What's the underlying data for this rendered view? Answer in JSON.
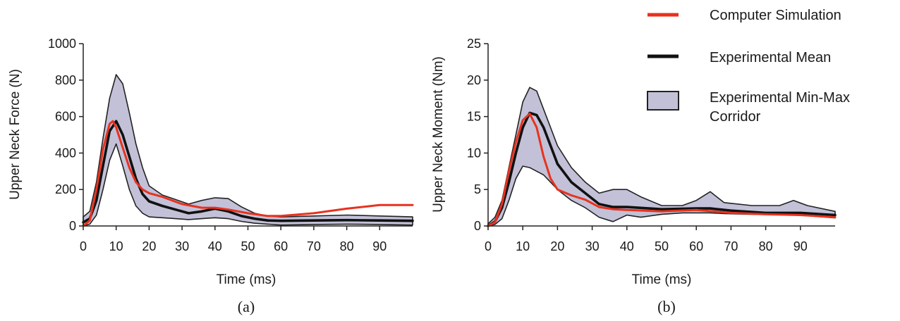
{
  "legend": {
    "items": [
      {
        "label": "Computer Simulation",
        "kind": "line",
        "color": "#e8321e"
      },
      {
        "label": "Experimental Mean",
        "kind": "line",
        "color": "#111111"
      },
      {
        "label": "Experimental Min-Max",
        "label2": "Corridor",
        "kind": "band",
        "color": "#c2c1d8"
      }
    ],
    "placement": "top-right"
  },
  "colors": {
    "simulation": "#e8321e",
    "mean": "#111111",
    "corridor_fill": "#c2c1d8",
    "corridor_edge": "#222222"
  },
  "chart_data": [
    {
      "type": "line",
      "panel_label": "(a)",
      "xlabel": "Time (ms)",
      "ylabel": "Upper Neck Force (N)",
      "xlim": [
        0,
        100
      ],
      "ylim": [
        0,
        1000
      ],
      "xticks": [
        0,
        10,
        20,
        30,
        40,
        50,
        60,
        70,
        80,
        90
      ],
      "yticks": [
        0,
        200,
        400,
        600,
        800,
        1000
      ],
      "grid": false,
      "series": [
        {
          "name": "Computer Simulation",
          "role": "simulation",
          "x": [
            0,
            2,
            4,
            6,
            8,
            9,
            10,
            12,
            14,
            16,
            18,
            20,
            24,
            30,
            36,
            40,
            44,
            50,
            56,
            60,
            70,
            80,
            90,
            100
          ],
          "y": [
            0,
            30,
            200,
            420,
            560,
            575,
            540,
            430,
            320,
            240,
            200,
            180,
            160,
            120,
            100,
            100,
            90,
            70,
            55,
            55,
            70,
            95,
            115,
            115
          ]
        },
        {
          "name": "Experimental Mean",
          "role": "mean",
          "x": [
            0,
            2,
            4,
            6,
            8,
            10,
            12,
            14,
            16,
            18,
            20,
            24,
            28,
            32,
            36,
            40,
            44,
            48,
            52,
            56,
            60,
            70,
            80,
            90,
            100
          ],
          "y": [
            20,
            40,
            140,
            330,
            520,
            575,
            500,
            380,
            260,
            175,
            135,
            110,
            90,
            70,
            80,
            95,
            80,
            55,
            40,
            30,
            28,
            30,
            32,
            30,
            28
          ]
        },
        {
          "name": "Experimental Min-Max Corridor",
          "role": "corridor",
          "x": [
            0,
            2,
            4,
            6,
            8,
            10,
            12,
            14,
            16,
            18,
            20,
            24,
            28,
            32,
            36,
            40,
            44,
            48,
            52,
            56,
            60,
            70,
            80,
            90,
            100
          ],
          "upper": [
            50,
            80,
            240,
            480,
            700,
            830,
            780,
            620,
            450,
            320,
            220,
            170,
            145,
            120,
            140,
            155,
            150,
            105,
            70,
            55,
            50,
            55,
            60,
            55,
            50
          ],
          "lower": [
            0,
            10,
            60,
            200,
            360,
            450,
            330,
            200,
            110,
            70,
            50,
            45,
            40,
            35,
            40,
            45,
            40,
            25,
            15,
            10,
            5,
            8,
            10,
            8,
            5
          ]
        }
      ]
    },
    {
      "type": "line",
      "panel_label": "(b)",
      "xlabel": "Time (ms)",
      "ylabel": "Upper Neck Moment (Nm)",
      "xlim": [
        0,
        100
      ],
      "ylim": [
        0,
        25
      ],
      "xticks": [
        0,
        10,
        20,
        30,
        40,
        50,
        60,
        70,
        80,
        90
      ],
      "yticks": [
        0,
        5,
        10,
        15,
        20,
        25
      ],
      "grid": false,
      "series": [
        {
          "name": "Computer Simulation",
          "role": "simulation",
          "x": [
            0,
            2,
            4,
            6,
            8,
            10,
            12,
            14,
            16,
            18,
            20,
            24,
            28,
            32,
            36,
            40,
            50,
            60,
            70,
            80,
            90,
            100
          ],
          "y": [
            0,
            0.5,
            3,
            7.5,
            11.5,
            14.5,
            15.4,
            13.5,
            9.5,
            6.5,
            5,
            4.2,
            3.6,
            2.6,
            2.3,
            2.2,
            2,
            2.2,
            1.8,
            1.6,
            1.5,
            1.2
          ]
        },
        {
          "name": "Experimental Mean",
          "role": "mean",
          "x": [
            0,
            2,
            4,
            6,
            8,
            10,
            12,
            14,
            16,
            18,
            20,
            24,
            28,
            32,
            36,
            40,
            50,
            60,
            64,
            70,
            80,
            90,
            100
          ],
          "y": [
            0,
            0.6,
            2.5,
            6,
            10,
            13.5,
            15.5,
            15.2,
            13.5,
            11,
            8.5,
            6,
            4.5,
            3,
            2.6,
            2.6,
            2.3,
            2.4,
            2.4,
            2.1,
            1.8,
            1.8,
            1.5
          ]
        },
        {
          "name": "Experimental Min-Max Corridor",
          "role": "corridor",
          "x": [
            0,
            2,
            4,
            6,
            8,
            10,
            12,
            14,
            16,
            18,
            20,
            24,
            28,
            32,
            36,
            40,
            44,
            50,
            56,
            60,
            64,
            68,
            76,
            84,
            88,
            92,
            100
          ],
          "upper": [
            0.3,
            1.2,
            3.5,
            8,
            12.5,
            17,
            19,
            18.5,
            16,
            13.5,
            11,
            8,
            6,
            4.5,
            5,
            5,
            4,
            2.8,
            2.8,
            3.5,
            4.7,
            3.2,
            2.8,
            2.8,
            3.5,
            2.8,
            2
          ],
          "lower": [
            0,
            0.2,
            1,
            3.5,
            6.5,
            8.2,
            8,
            7.5,
            7,
            6,
            5,
            3.5,
            2.5,
            1.2,
            0.6,
            1.5,
            1.2,
            1.6,
            1.8,
            1.8,
            1.8,
            1.7,
            1.6,
            1.6,
            1.5,
            1.4,
            1.1
          ]
        }
      ]
    }
  ]
}
